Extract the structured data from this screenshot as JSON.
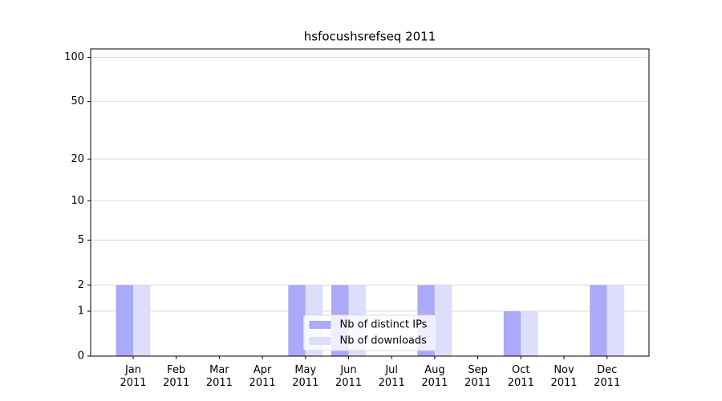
{
  "chart_data": {
    "type": "bar",
    "title": "hsfocushsrefseq 2011",
    "categories": [
      "Jan 2011",
      "Feb 2011",
      "Mar 2011",
      "Apr 2011",
      "May 2011",
      "Jun 2011",
      "Jul 2011",
      "Aug 2011",
      "Sep 2011",
      "Oct 2011",
      "Nov 2011",
      "Dec 2011"
    ],
    "series": [
      {
        "name": "Nb of distinct IPs",
        "color": "#aaaaf8",
        "values": [
          2,
          0,
          0,
          0,
          2,
          2,
          0,
          2,
          0,
          1,
          0,
          2
        ]
      },
      {
        "name": "Nb of downloads",
        "color": "#ddddfc",
        "values": [
          2,
          0,
          0,
          0,
          2,
          2,
          0,
          2,
          0,
          1,
          0,
          2
        ]
      }
    ],
    "yscale": "log1p",
    "ylim": [
      0,
      114
    ],
    "yticks": [
      0,
      1,
      2,
      5,
      10,
      20,
      50,
      100
    ],
    "grid": true,
    "legend": "lower center"
  }
}
